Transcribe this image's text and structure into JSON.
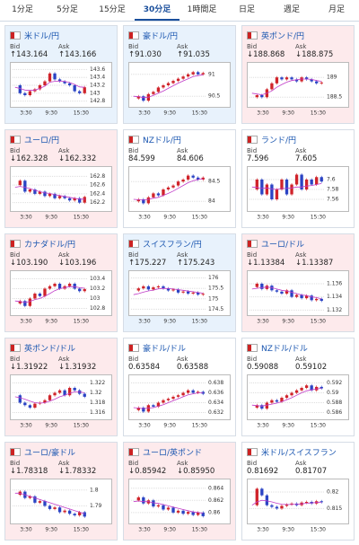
{
  "tabs": [
    "1分足",
    "5分足",
    "15分足",
    "30分足",
    "1時間足",
    "日足",
    "週足",
    "月足"
  ],
  "active_tab": 3,
  "labels": {
    "bid": "Bid",
    "ask": "Ask"
  },
  "time_labels": [
    "3:30",
    "9:30",
    "15:30"
  ],
  "cards": [
    {
      "name": "米ドル/円",
      "bid": "↑143.164",
      "ask": "↑143.166",
      "color": "#e8f2fc",
      "chart": {
        "ylim": [
          142.7,
          143.7
        ],
        "yticks": [
          143.6,
          143.4,
          143.2,
          143,
          142.8
        ],
        "closes": [
          143.2,
          143.0,
          142.95,
          143.05,
          143.1,
          143.2,
          143.3,
          143.5,
          143.35,
          143.3,
          143.25,
          143.2,
          143.05,
          143.0,
          143.15
        ],
        "ma": [
          143.15,
          143.12,
          143.08,
          143.07,
          143.08,
          143.12,
          143.18,
          143.28,
          143.3,
          143.31,
          143.3,
          143.27,
          143.22,
          143.16,
          143.15
        ]
      }
    },
    {
      "name": "豪ドル/円",
      "bid": "↑91.030",
      "ask": "↑91.035",
      "color": "#e8f2fc",
      "chart": {
        "ylim": [
          90.3,
          91.2
        ],
        "yticks": [
          91,
          90.5
        ],
        "closes": [
          90.45,
          90.5,
          90.4,
          90.55,
          90.6,
          90.7,
          90.75,
          90.8,
          90.85,
          90.9,
          90.95,
          91.0,
          91.05,
          91.0,
          91.03
        ],
        "ma": [
          90.5,
          90.49,
          90.47,
          90.48,
          90.52,
          90.57,
          90.62,
          90.68,
          90.74,
          90.8,
          90.85,
          90.9,
          90.95,
          90.97,
          90.99
        ]
      }
    },
    {
      "name": "英ポンド/円",
      "bid": "↓188.868",
      "ask": "↓188.875",
      "color": "#fdeaec",
      "chart": {
        "ylim": [
          188.3,
          189.3
        ],
        "yticks": [
          189,
          188.5
        ],
        "closes": [
          188.5,
          188.55,
          188.5,
          188.7,
          188.85,
          189.0,
          188.95,
          189.0,
          188.95,
          188.9,
          189.0,
          188.95,
          188.9,
          188.85,
          188.87
        ],
        "ma": [
          188.6,
          188.58,
          188.56,
          188.6,
          188.66,
          188.75,
          188.82,
          188.88,
          188.92,
          188.94,
          188.96,
          188.96,
          188.95,
          188.92,
          188.9
        ]
      }
    },
    {
      "name": "ユーロ/円",
      "bid": "↓162.328",
      "ask": "↓162.332",
      "color": "#fdeaec",
      "chart": {
        "ylim": [
          162.05,
          162.95
        ],
        "yticks": [
          162.8,
          162.6,
          162.4,
          162.2
        ],
        "closes": [
          162.6,
          162.7,
          162.45,
          162.5,
          162.4,
          162.45,
          162.35,
          162.4,
          162.3,
          162.35,
          162.3,
          162.25,
          162.3,
          162.2,
          162.33
        ],
        "ma": [
          162.55,
          162.57,
          162.55,
          162.52,
          162.48,
          162.45,
          162.42,
          162.41,
          162.38,
          162.36,
          162.34,
          162.32,
          162.3,
          162.28,
          162.28
        ]
      }
    },
    {
      "name": "NZドル/円",
      "bid": "84.599",
      "ask": "84.606",
      "color": "#ffffff",
      "chart": {
        "ylim": [
          83.8,
          84.8
        ],
        "yticks": [
          84.5,
          84
        ],
        "closes": [
          84.0,
          84.05,
          83.95,
          84.1,
          84.2,
          84.15,
          84.3,
          84.35,
          84.4,
          84.5,
          84.55,
          84.65,
          84.6,
          84.55,
          84.6
        ],
        "ma": [
          84.05,
          84.04,
          84.03,
          84.05,
          84.08,
          84.1,
          84.15,
          84.2,
          84.26,
          84.33,
          84.4,
          84.47,
          84.52,
          84.55,
          84.57
        ]
      }
    },
    {
      "name": "ランド/円",
      "bid": "7.596",
      "ask": "7.605",
      "color": "#ffffff",
      "chart": {
        "ylim": [
          7.54,
          7.62
        ],
        "yticks": [
          7.6,
          7.58,
          7.56
        ],
        "closes": [
          7.58,
          7.6,
          7.57,
          7.59,
          7.56,
          7.58,
          7.6,
          7.57,
          7.59,
          7.61,
          7.58,
          7.6,
          7.59,
          7.605,
          7.596
        ],
        "ma": [
          7.585,
          7.584,
          7.582,
          7.583,
          7.581,
          7.58,
          7.582,
          7.582,
          7.583,
          7.585,
          7.585,
          7.587,
          7.588,
          7.59,
          7.592
        ]
      }
    },
    {
      "name": "カナダドル/円",
      "bid": "↓103.190",
      "ask": "↓103.196",
      "color": "#fdeaec",
      "chart": {
        "ylim": [
          102.7,
          103.5
        ],
        "yticks": [
          103.4,
          103.2,
          103,
          102.8
        ],
        "closes": [
          102.9,
          102.95,
          102.85,
          103.0,
          103.1,
          103.05,
          103.2,
          103.25,
          103.3,
          103.2,
          103.25,
          103.3,
          103.2,
          103.15,
          103.19
        ],
        "ma": [
          102.95,
          102.94,
          102.92,
          102.94,
          102.98,
          103.0,
          103.05,
          103.1,
          103.16,
          103.2,
          103.22,
          103.24,
          103.24,
          103.22,
          103.21
        ]
      }
    },
    {
      "name": "スイスフラン/円",
      "bid": "↑175.227",
      "ask": "↑175.243",
      "color": "#e8f2fc",
      "chart": {
        "ylim": [
          174.3,
          176.2
        ],
        "yticks": [
          176,
          175.5,
          175,
          174.5
        ],
        "closes": [
          175.4,
          175.5,
          175.6,
          175.45,
          175.55,
          175.6,
          175.5,
          175.4,
          175.45,
          175.3,
          175.35,
          175.25,
          175.3,
          175.2,
          175.24
        ],
        "ma": [
          175.2,
          175.25,
          175.32,
          175.38,
          175.42,
          175.48,
          175.5,
          175.49,
          175.47,
          175.44,
          175.41,
          175.37,
          175.34,
          175.3,
          175.27
        ]
      }
    },
    {
      "name": "ユーロ/ドル",
      "bid": "↓1.13384",
      "ask": "↓1.13387",
      "color": "#fdeaec",
      "chart": {
        "ylim": [
          1.1315,
          1.1375
        ],
        "yticks": [
          1.136,
          1.134,
          1.132
        ],
        "closes": [
          1.1355,
          1.136,
          1.1352,
          1.1357,
          1.135,
          1.1348,
          1.1345,
          1.135,
          1.134,
          1.1343,
          1.1338,
          1.1342,
          1.1335,
          1.1337,
          1.1334
        ],
        "ma": [
          1.1352,
          1.1353,
          1.1354,
          1.1355,
          1.1354,
          1.1352,
          1.135,
          1.1349,
          1.1347,
          1.1345,
          1.1343,
          1.1342,
          1.134,
          1.1339,
          1.1337
        ]
      }
    },
    {
      "name": "英ポンド/ドル",
      "bid": "↓1.31922",
      "ask": "↓1.31932",
      "color": "#fdeaec",
      "chart": {
        "ylim": [
          1.315,
          1.323
        ],
        "yticks": [
          1.322,
          1.32,
          1.318,
          1.316
        ],
        "closes": [
          1.3195,
          1.318,
          1.3175,
          1.317,
          1.3178,
          1.318,
          1.3185,
          1.3195,
          1.32,
          1.3205,
          1.3195,
          1.321,
          1.3205,
          1.3198,
          1.3192
        ],
        "ma": [
          1.3192,
          1.319,
          1.3187,
          1.3183,
          1.318,
          1.3179,
          1.318,
          1.3183,
          1.3187,
          1.3192,
          1.3195,
          1.3199,
          1.3202,
          1.3202,
          1.32
        ]
      }
    },
    {
      "name": "豪ドル/ドル",
      "bid": "0.63584",
      "ask": "0.63588",
      "color": "#ffffff",
      "chart": {
        "ylim": [
          0.631,
          0.639
        ],
        "yticks": [
          0.638,
          0.636,
          0.634,
          0.632
        ],
        "closes": [
          0.6325,
          0.633,
          0.6322,
          0.6335,
          0.6332,
          0.634,
          0.6345,
          0.6348,
          0.6352,
          0.6355,
          0.636,
          0.6365,
          0.636,
          0.6362,
          0.6358
        ],
        "ma": [
          0.633,
          0.6329,
          0.6328,
          0.6329,
          0.633,
          0.6333,
          0.6336,
          0.634,
          0.6344,
          0.6348,
          0.6352,
          0.6356,
          0.6358,
          0.636,
          0.636
        ]
      }
    },
    {
      "name": "NZドル/ドル",
      "bid": "0.59088",
      "ask": "0.59102",
      "color": "#ffffff",
      "chart": {
        "ylim": [
          0.585,
          0.593
        ],
        "yticks": [
          0.592,
          0.59,
          0.588,
          0.586
        ],
        "closes": [
          0.587,
          0.5875,
          0.5868,
          0.588,
          0.5885,
          0.5882,
          0.589,
          0.5895,
          0.59,
          0.5905,
          0.591,
          0.5915,
          0.5905,
          0.5912,
          0.5909
        ],
        "ma": [
          0.5875,
          0.5874,
          0.5873,
          0.5875,
          0.5877,
          0.5879,
          0.5882,
          0.5886,
          0.589,
          0.5895,
          0.59,
          0.5904,
          0.5906,
          0.5908,
          0.5909
        ]
      }
    },
    {
      "name": "ユーロ/豪ドル",
      "bid": "↓1.78318",
      "ask": "↓1.78332",
      "color": "#fdeaec",
      "chart": {
        "ylim": [
          1.78,
          1.805
        ],
        "yticks": [
          1.8,
          1.79
        ],
        "closes": [
          1.797,
          1.799,
          1.795,
          1.796,
          1.792,
          1.793,
          1.79,
          1.788,
          1.789,
          1.786,
          1.787,
          1.785,
          1.784,
          1.786,
          1.7832
        ],
        "ma": [
          1.798,
          1.798,
          1.797,
          1.796,
          1.795,
          1.794,
          1.793,
          1.792,
          1.791,
          1.79,
          1.789,
          1.788,
          1.787,
          1.786,
          1.785
        ]
      }
    },
    {
      "name": "ユーロ/英ポンド",
      "bid": "↓0.85942",
      "ask": "↓0.85950",
      "color": "#fdeaec",
      "chart": {
        "ylim": [
          0.8585,
          0.865
        ],
        "yticks": [
          0.864,
          0.862,
          0.86
        ],
        "closes": [
          0.862,
          0.8625,
          0.8615,
          0.862,
          0.861,
          0.8612,
          0.8605,
          0.8608,
          0.86,
          0.8603,
          0.8598,
          0.8601,
          0.8596,
          0.86,
          0.8594
        ],
        "ma": [
          0.8618,
          0.8619,
          0.8618,
          0.8618,
          0.8616,
          0.8615,
          0.8613,
          0.8611,
          0.8609,
          0.8607,
          0.8605,
          0.8603,
          0.8601,
          0.86,
          0.8599
        ]
      }
    },
    {
      "name": "米ドル/スイスフラン",
      "bid": "0.81692",
      "ask": "0.81707",
      "color": "#ffffff",
      "chart": {
        "ylim": [
          0.811,
          0.823
        ],
        "yticks": [
          0.82,
          0.815
        ],
        "closes": [
          0.816,
          0.821,
          0.819,
          0.816,
          0.8155,
          0.815,
          0.8158,
          0.8162,
          0.8165,
          0.816,
          0.8168,
          0.817,
          0.8165,
          0.8172,
          0.8169
        ],
        "ma": [
          0.816,
          0.817,
          0.8175,
          0.8173,
          0.817,
          0.8166,
          0.8163,
          0.8162,
          0.8162,
          0.8163,
          0.8164,
          0.8166,
          0.8167,
          0.8168,
          0.8169
        ]
      }
    }
  ]
}
